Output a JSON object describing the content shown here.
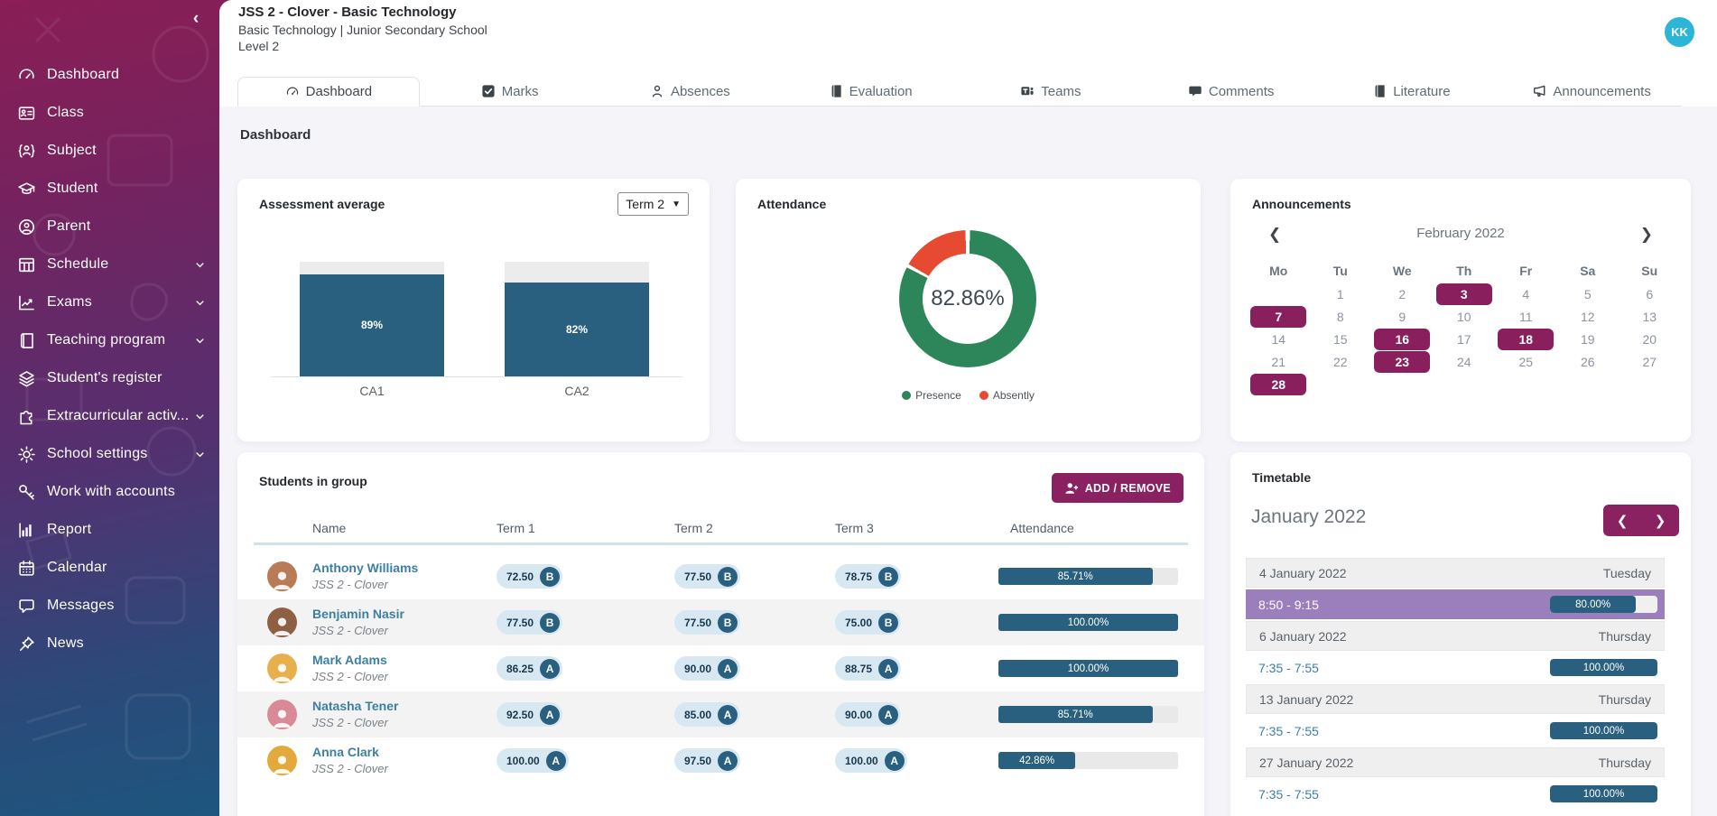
{
  "colors": {
    "accent_magenta": "#8a2160",
    "teal_bar": "#2a607f",
    "presence_green": "#2d8659",
    "absence_red": "#e74a33",
    "timetable_highlight": "#9b7fbc",
    "avatar_cyan": "#2cb5d6"
  },
  "sidebar": {
    "items": [
      {
        "label": "Dashboard",
        "icon": "gauge",
        "expandable": false
      },
      {
        "label": "Class",
        "icon": "id-card",
        "expandable": false
      },
      {
        "label": "Subject",
        "icon": "person-braces",
        "expandable": false
      },
      {
        "label": "Student",
        "icon": "graduation-cap",
        "expandable": false
      },
      {
        "label": "Parent",
        "icon": "person-circle",
        "expandable": false
      },
      {
        "label": "Schedule",
        "icon": "table-grid",
        "expandable": true
      },
      {
        "label": "Exams",
        "icon": "line-chart",
        "expandable": true
      },
      {
        "label": "Teaching program",
        "icon": "book",
        "expandable": true
      },
      {
        "label": "Student's register",
        "icon": "layers",
        "expandable": false
      },
      {
        "label": "Extracurricular activ...",
        "icon": "puzzle",
        "expandable": true
      },
      {
        "label": "School settings",
        "icon": "gear",
        "expandable": true
      },
      {
        "label": "Work with accounts",
        "icon": "key",
        "expandable": false
      },
      {
        "label": "Report",
        "icon": "bar-chart",
        "expandable": false
      },
      {
        "label": "Calendar",
        "icon": "calendar",
        "expandable": false
      },
      {
        "label": "Messages",
        "icon": "chat",
        "expandable": false
      },
      {
        "label": "News",
        "icon": "pin",
        "expandable": false
      }
    ]
  },
  "header": {
    "title": "JSS 2 - Clover - Basic Technology",
    "subtitle": "Basic Technology | Junior Secondary School",
    "level": "Level 2",
    "avatar_initials": "KK"
  },
  "tabs": [
    {
      "label": "Dashboard",
      "icon": "gauge",
      "active": true
    },
    {
      "label": "Marks",
      "icon": "check-square",
      "active": false
    },
    {
      "label": "Absences",
      "icon": "person",
      "active": false
    },
    {
      "label": "Evaluation",
      "icon": "book",
      "active": false
    },
    {
      "label": "Teams",
      "icon": "teams",
      "active": false
    },
    {
      "label": "Comments",
      "icon": "comment",
      "active": false
    },
    {
      "label": "Literature",
      "icon": "book",
      "active": false
    },
    {
      "label": "Announcements",
      "icon": "megaphone",
      "active": false
    }
  ],
  "page_title": "Dashboard",
  "chart_data": [
    {
      "type": "bar",
      "title": "Assessment average",
      "categories": [
        "CA1",
        "CA2"
      ],
      "values": [
        89,
        82
      ],
      "value_labels": [
        "89%",
        "82%"
      ],
      "ylim": [
        0,
        100
      ],
      "bar_color": "#2a607f",
      "track_color": "#ececec",
      "grid": false,
      "legend_position": "none"
    },
    {
      "type": "pie",
      "title": "Attendance",
      "labels": [
        "Presence",
        "Absently"
      ],
      "values": [
        82.86,
        17.14
      ],
      "colors": [
        "#2d8659",
        "#e74a33"
      ],
      "center_label": "82.86%",
      "donut": true,
      "legend_position": "bottom"
    }
  ],
  "assessment": {
    "title": "Assessment average",
    "term_selector_value": "Term 2"
  },
  "attendance": {
    "title": "Attendance"
  },
  "announcements": {
    "title": "Announcements",
    "month_label": "February 2022",
    "day_headers": [
      "Mo",
      "Tu",
      "We",
      "Th",
      "Fr",
      "Sa",
      "Su"
    ],
    "highlighted_days": [
      3,
      7,
      16,
      18,
      23,
      28
    ],
    "cells": [
      {
        "d": ""
      },
      {
        "d": "1"
      },
      {
        "d": "2"
      },
      {
        "d": "3",
        "hl": true
      },
      {
        "d": "4"
      },
      {
        "d": "5"
      },
      {
        "d": "6"
      },
      {
        "d": "7",
        "hl": true
      },
      {
        "d": "8"
      },
      {
        "d": "9"
      },
      {
        "d": "10"
      },
      {
        "d": "11"
      },
      {
        "d": "12"
      },
      {
        "d": "13"
      },
      {
        "d": "14"
      },
      {
        "d": "15"
      },
      {
        "d": "16",
        "hl": true
      },
      {
        "d": "17"
      },
      {
        "d": "18",
        "hl": true
      },
      {
        "d": "19"
      },
      {
        "d": "20"
      },
      {
        "d": "21"
      },
      {
        "d": "22"
      },
      {
        "d": "23",
        "hl": true
      },
      {
        "d": "24"
      },
      {
        "d": "25"
      },
      {
        "d": "26"
      },
      {
        "d": "27"
      },
      {
        "d": "28",
        "hl": true
      },
      {
        "d": ""
      },
      {
        "d": ""
      },
      {
        "d": ""
      },
      {
        "d": ""
      },
      {
        "d": ""
      },
      {
        "d": ""
      }
    ]
  },
  "students": {
    "title": "Students in group",
    "add_button_label": "ADD / REMOVE",
    "columns": [
      "Name",
      "Term 1",
      "Term 2",
      "Term 3",
      "Attendance"
    ],
    "rows": [
      {
        "name": "Anthony Williams",
        "group": "JSS 2 - Clover",
        "terms": [
          {
            "score": "72.50",
            "grade": "B"
          },
          {
            "score": "77.50",
            "grade": "B"
          },
          {
            "score": "78.75",
            "grade": "B"
          }
        ],
        "attendance_pct": 85.71,
        "attendance_label": "85.71%"
      },
      {
        "name": "Benjamin Nasir",
        "group": "JSS 2 - Clover",
        "terms": [
          {
            "score": "77.50",
            "grade": "B"
          },
          {
            "score": "77.50",
            "grade": "B"
          },
          {
            "score": "75.00",
            "grade": "B"
          }
        ],
        "attendance_pct": 100,
        "attendance_label": "100.00%"
      },
      {
        "name": "Mark Adams",
        "group": "JSS 2 - Clover",
        "terms": [
          {
            "score": "86.25",
            "grade": "A"
          },
          {
            "score": "90.00",
            "grade": "A"
          },
          {
            "score": "88.75",
            "grade": "A"
          }
        ],
        "attendance_pct": 100,
        "attendance_label": "100.00%"
      },
      {
        "name": "Natasha Tener",
        "group": "JSS 2 - Clover",
        "terms": [
          {
            "score": "92.50",
            "grade": "A"
          },
          {
            "score": "85.00",
            "grade": "A"
          },
          {
            "score": "90.00",
            "grade": "A"
          }
        ],
        "attendance_pct": 85.71,
        "attendance_label": "85.71%"
      },
      {
        "name": "Anna Clark",
        "group": "JSS 2 - Clover",
        "terms": [
          {
            "score": "100.00",
            "grade": "A"
          },
          {
            "score": "97.50",
            "grade": "A"
          },
          {
            "score": "100.00",
            "grade": "A"
          }
        ],
        "attendance_pct": 42.86,
        "attendance_label": "42.86%"
      }
    ]
  },
  "timetable": {
    "title": "Timetable",
    "month_label": "January 2022",
    "entries": [
      {
        "type": "date",
        "date": "4 January 2022",
        "weekday": "Tuesday"
      },
      {
        "type": "session",
        "time": "8:50 - 9:15",
        "pct": 80,
        "label": "80.00%",
        "highlight": true
      },
      {
        "type": "date",
        "date": "6 January 2022",
        "weekday": "Thursday"
      },
      {
        "type": "session",
        "time": "7:35 - 7:55",
        "pct": 100,
        "label": "100.00%",
        "highlight": false
      },
      {
        "type": "date",
        "date": "13 January 2022",
        "weekday": "Thursday"
      },
      {
        "type": "session",
        "time": "7:35 - 7:55",
        "pct": 100,
        "label": "100.00%",
        "highlight": false
      },
      {
        "type": "date",
        "date": "27 January 2022",
        "weekday": "Thursday"
      },
      {
        "type": "session",
        "time": "7:35 - 7:55",
        "pct": 100,
        "label": "100.00%",
        "highlight": false
      }
    ]
  }
}
